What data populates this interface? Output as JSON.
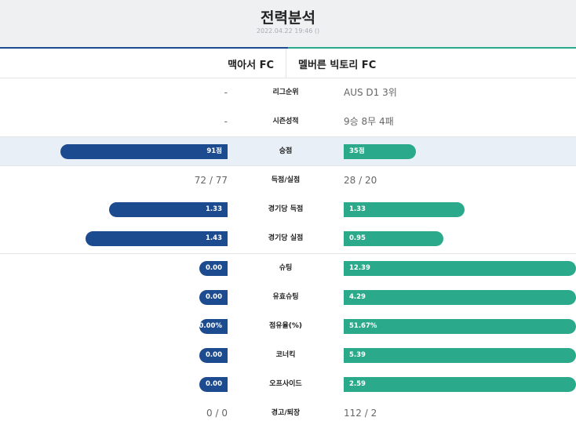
{
  "page": {
    "title": "전력분석",
    "timestamp": "2022.04.22 19:46 ()"
  },
  "teams": {
    "home": "맥아서 FC",
    "away": "멜버른 빅토리 FC"
  },
  "colors": {
    "home": "#1d4b8f",
    "away": "#2aaa8a",
    "highlight_row": "#e8eff7"
  },
  "rows": {
    "league_rank": {
      "label": "리그순위",
      "home": "-",
      "away": "AUS D1 3위"
    },
    "season_record": {
      "label": "시즌성적",
      "home": "-",
      "away": "9승 8무 4패"
    },
    "points": {
      "label": "승점",
      "home": "91점",
      "away": "35점",
      "home_fill": 0.72,
      "away_fill": 0.31
    },
    "goals": {
      "label": "득점/실점",
      "home": "72 / 77",
      "away": "28 / 20"
    },
    "goals_per_game": {
      "label": "경기당 득점",
      "home": "1.33",
      "away": "1.33",
      "home_fill": 0.51,
      "away_fill": 0.52
    },
    "conceded_per_game": {
      "label": "경기당 실점",
      "home": "1.43",
      "away": "0.95",
      "home_fill": 0.61,
      "away_fill": 0.43
    },
    "shots": {
      "label": "슈팅",
      "home": "0.00",
      "away": "12.39",
      "home_fill": 0.12,
      "away_fill": 1.0
    },
    "shots_on_target": {
      "label": "유효슈팅",
      "home": "0.00",
      "away": "4.29",
      "home_fill": 0.12,
      "away_fill": 1.0
    },
    "possession": {
      "label": "점유율(%)",
      "home": "0.00%",
      "away": "51.67%",
      "home_fill": 0.12,
      "away_fill": 1.0
    },
    "corners": {
      "label": "코너킥",
      "home": "0.00",
      "away": "5.39",
      "home_fill": 0.12,
      "away_fill": 1.0
    },
    "offsides": {
      "label": "오프사이드",
      "home": "0.00",
      "away": "2.59",
      "home_fill": 0.12,
      "away_fill": 1.0
    },
    "cards": {
      "label": "경고/퇴장",
      "home": "0 / 0",
      "away": "112 / 2"
    }
  }
}
